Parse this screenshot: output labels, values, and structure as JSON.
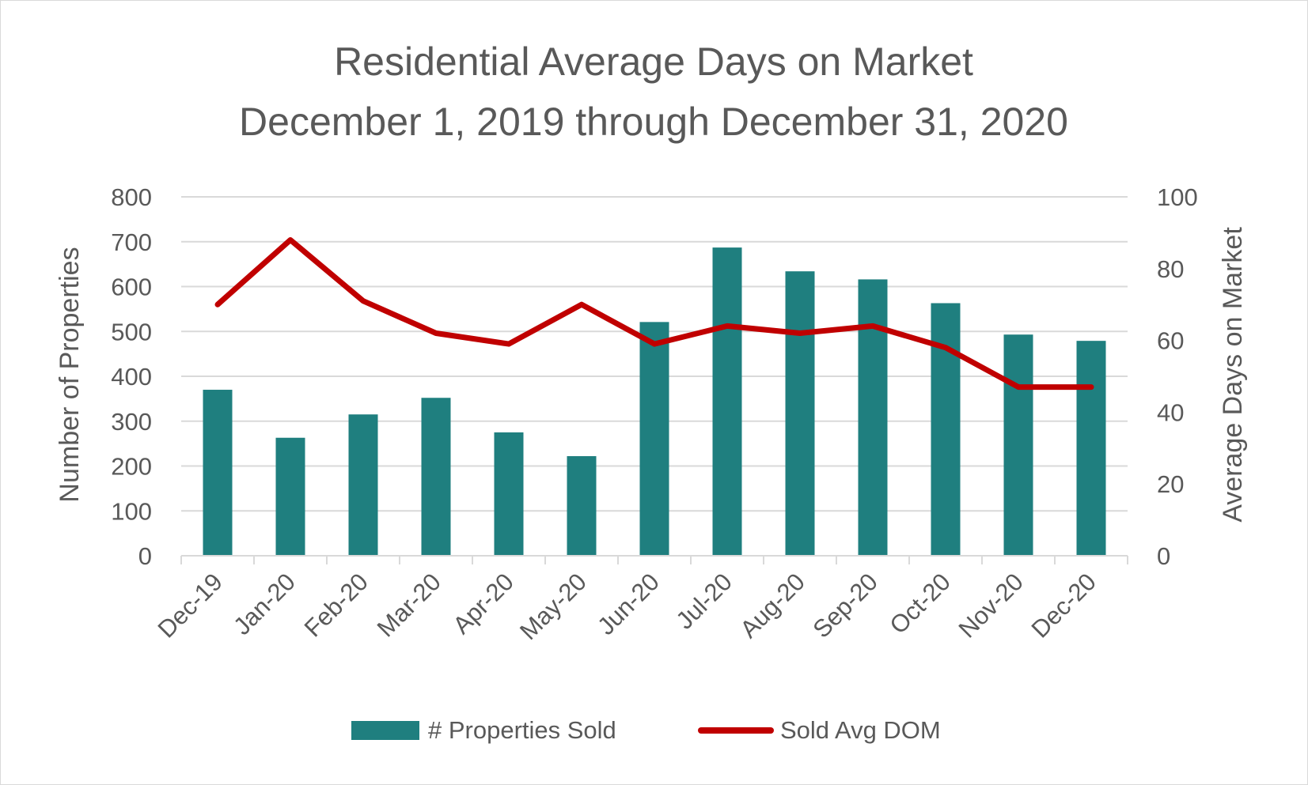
{
  "chart_data": {
    "type": "bar",
    "title": "Residential Average Days on Market",
    "subtitle": "December 1, 2019 through December 31, 2020",
    "categories": [
      "Dec-19",
      "Jan-20",
      "Feb-20",
      "Mar-20",
      "Apr-20",
      "May-20",
      "Jun-20",
      "Jul-20",
      "Aug-20",
      "Sep-20",
      "Oct-20",
      "Nov-20",
      "Dec-20"
    ],
    "series": [
      {
        "name": "# Properties Sold",
        "type": "bar",
        "axis": "left",
        "color": "#1f7f7f",
        "values": [
          370,
          263,
          315,
          352,
          275,
          222,
          521,
          687,
          634,
          616,
          563,
          493,
          479
        ]
      },
      {
        "name": "Sold Avg DOM",
        "type": "line",
        "axis": "right",
        "color": "#c00000",
        "values": [
          70,
          88,
          71,
          62,
          59,
          70,
          59,
          64,
          62,
          64,
          58,
          47,
          47
        ]
      }
    ],
    "ylabel": "Number of Properties",
    "y2label": "Average Days on Market",
    "ylim": [
      0,
      800
    ],
    "y2lim": [
      0,
      100
    ],
    "yticks": [
      "0",
      "100",
      "200",
      "300",
      "400",
      "500",
      "600",
      "700",
      "800"
    ],
    "y2ticks": [
      "0",
      "20",
      "40",
      "60",
      "80",
      "100"
    ],
    "grid": true,
    "legend_position": "bottom"
  }
}
